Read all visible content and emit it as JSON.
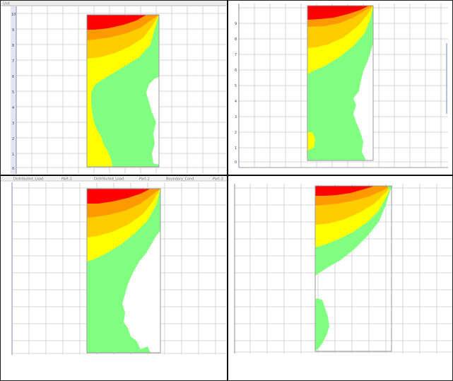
{
  "colors": {
    "band_1": "#ff0000",
    "band_2": "#ff9900",
    "band_3": "#ffcc00",
    "band_4": "#ffff00",
    "band_5": "#80ff80",
    "background": "#ffffff",
    "grid": "#d4d4d4"
  },
  "panels": [
    {
      "id": "top-left",
      "y_axis_ticks": [
        "10",
        "9",
        "8",
        "7",
        "6",
        "5",
        "4",
        "3",
        "2",
        "1",
        "0"
      ],
      "header_label": "Unit"
    },
    {
      "id": "top-right",
      "y_axis_ticks": [
        "9",
        "8",
        "7",
        "6",
        "5",
        "4",
        "3",
        "2",
        "1",
        "0"
      ]
    },
    {
      "id": "bottom-left",
      "tab_labels": [
        "Distributed_Load",
        "Part-1",
        "Distributed_Load",
        "Part-2",
        "Boundary_Cond",
        "Part-3"
      ]
    },
    {
      "id": "bottom-right"
    }
  ]
}
